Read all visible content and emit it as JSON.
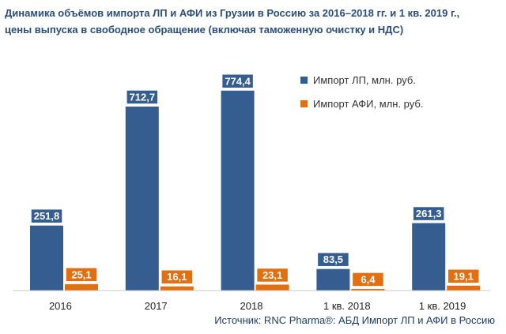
{
  "chart_data": {
    "type": "bar",
    "title_lines": [
      "Динамика объёмов импорта ЛП и АФИ из Грузии в Россию за 2016–2018 гг. и 1 кв. 2019 г.,",
      "цены выпуска в свободное обращение (включая таможенную очистку и НДС)"
    ],
    "categories": [
      "2016",
      "2017",
      "2018",
      "1 кв. 2018",
      "1 кв. 2019"
    ],
    "series": [
      {
        "name": "Импорт ЛП, млн. руб.",
        "color": "#355d8f",
        "values": [
          251.8,
          712.7,
          774.4,
          83.5,
          261.3
        ],
        "labels": [
          "251,8",
          "712,7",
          "774,4",
          "83,5",
          "261,3"
        ]
      },
      {
        "name": "Импорт АФИ, млн. руб.",
        "color": "#e36f10",
        "values": [
          25.1,
          16.1,
          23.1,
          6.4,
          19.1
        ],
        "labels": [
          "25,1",
          "16,1",
          "23,1",
          "6,4",
          "19,1"
        ]
      }
    ],
    "ylim": [
      0,
      800
    ],
    "legend_position": "top-right",
    "source": "Источник: RNC Pharma®: АБД Импорт ЛП и АФИ в Россию"
  }
}
